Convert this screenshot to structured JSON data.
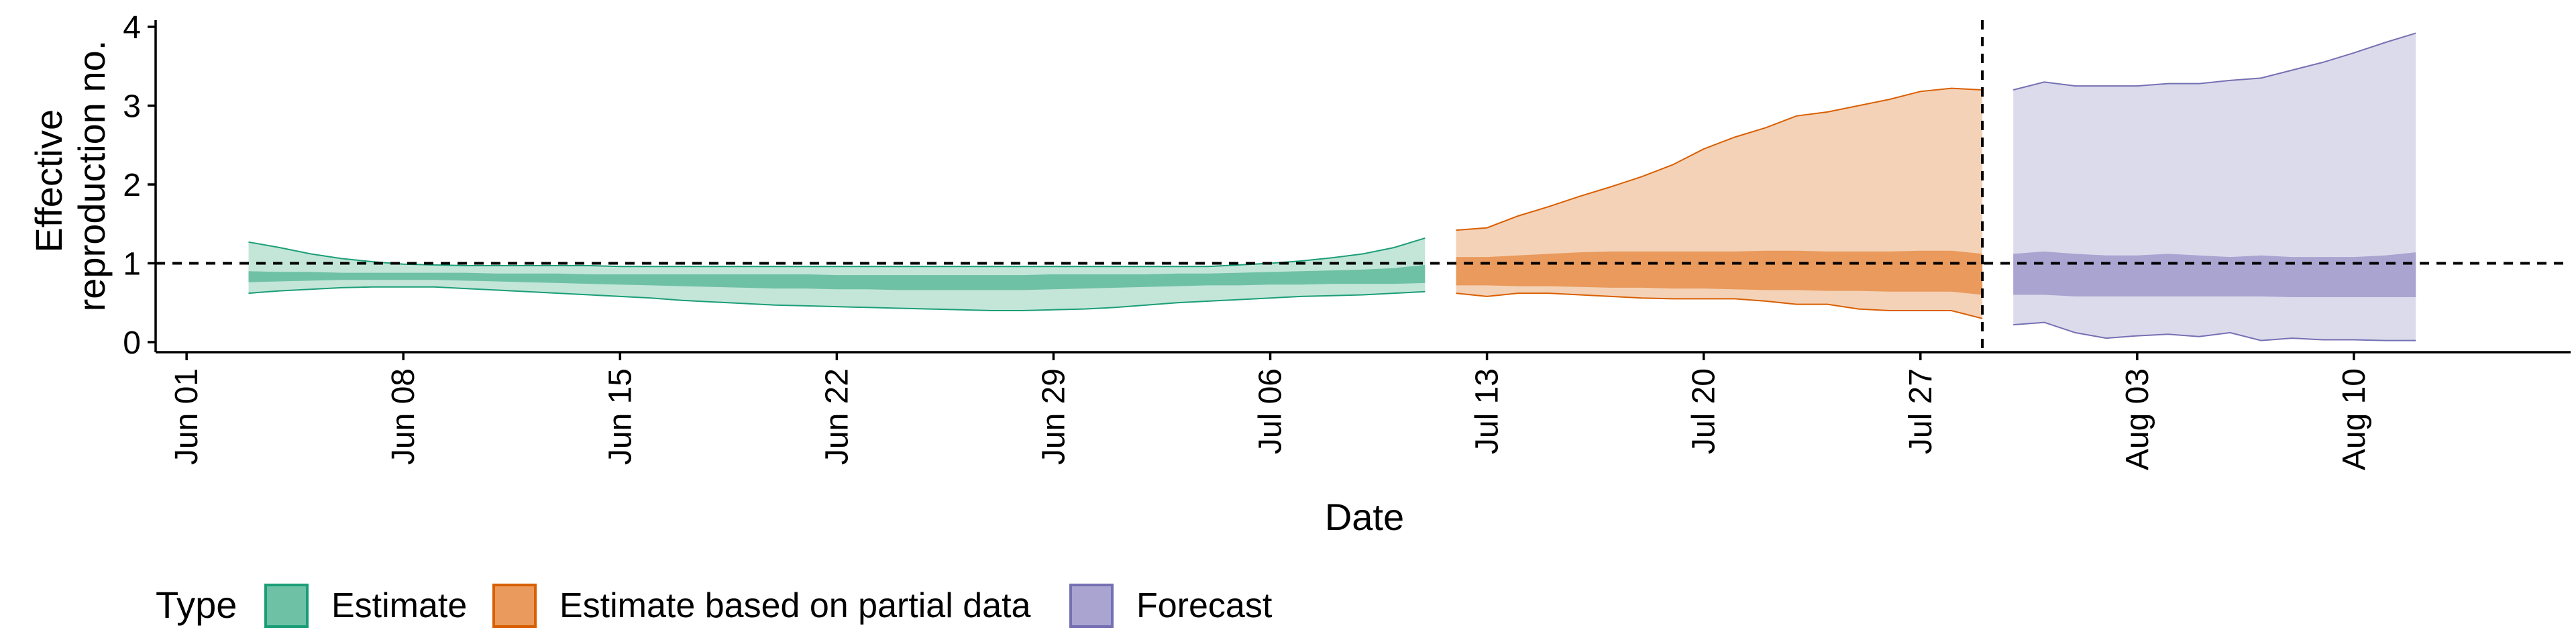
{
  "chart_data": {
    "type": "area",
    "title": "",
    "xlabel": "Date",
    "ylabel_lines": [
      "Effective",
      "reproduction no."
    ],
    "ylim": [
      0,
      4
    ],
    "yticks": [
      0,
      1,
      2,
      3,
      4
    ],
    "xlim": [
      "2021-05-31",
      "2021-08-17"
    ],
    "xticks": [
      {
        "date": "2021-06-01",
        "label": "Jun 01"
      },
      {
        "date": "2021-06-08",
        "label": "Jun 08"
      },
      {
        "date": "2021-06-15",
        "label": "Jun 15"
      },
      {
        "date": "2021-06-22",
        "label": "Jun 22"
      },
      {
        "date": "2021-06-29",
        "label": "Jun 29"
      },
      {
        "date": "2021-07-06",
        "label": "Jul 06"
      },
      {
        "date": "2021-07-13",
        "label": "Jul 13"
      },
      {
        "date": "2021-07-20",
        "label": "Jul 20"
      },
      {
        "date": "2021-07-27",
        "label": "Jul 27"
      },
      {
        "date": "2021-08-03",
        "label": "Aug 03"
      },
      {
        "date": "2021-08-10",
        "label": "Aug 10"
      }
    ],
    "reference_line_y": 1,
    "vertical_reference_date": "2021-07-29",
    "grid": false,
    "legend": {
      "title": "Type",
      "position": "bottom-left",
      "entries": [
        {
          "label": "Estimate",
          "fill": "#6fc1a6",
          "stroke": "#1b9e77"
        },
        {
          "label": "Estimate based on partial data",
          "fill": "#e99a5c",
          "stroke": "#d95f02"
        },
        {
          "label": "Forecast",
          "fill": "#a9a4d0",
          "stroke": "#7570b3"
        }
      ]
    },
    "series": [
      {
        "name": "Estimate",
        "color": "#1b9e77",
        "outer_fill": "#c3e6d9",
        "inner_fill": "#6fc1a6",
        "dates": [
          "2021-06-03",
          "2021-06-04",
          "2021-06-05",
          "2021-06-06",
          "2021-06-07",
          "2021-06-08",
          "2021-06-09",
          "2021-06-10",
          "2021-06-11",
          "2021-06-12",
          "2021-06-13",
          "2021-06-14",
          "2021-06-15",
          "2021-06-16",
          "2021-06-17",
          "2021-06-18",
          "2021-06-19",
          "2021-06-20",
          "2021-06-21",
          "2021-06-22",
          "2021-06-23",
          "2021-06-24",
          "2021-06-25",
          "2021-06-26",
          "2021-06-27",
          "2021-06-28",
          "2021-06-29",
          "2021-06-30",
          "2021-07-01",
          "2021-07-02",
          "2021-07-03",
          "2021-07-04",
          "2021-07-05",
          "2021-07-06",
          "2021-07-07",
          "2021-07-08",
          "2021-07-09",
          "2021-07-10",
          "2021-07-11"
        ],
        "outer_lower": [
          0.62,
          0.65,
          0.67,
          0.69,
          0.7,
          0.7,
          0.7,
          0.68,
          0.66,
          0.64,
          0.62,
          0.6,
          0.58,
          0.56,
          0.53,
          0.51,
          0.49,
          0.47,
          0.46,
          0.45,
          0.44,
          0.43,
          0.42,
          0.41,
          0.4,
          0.4,
          0.41,
          0.42,
          0.44,
          0.47,
          0.5,
          0.52,
          0.54,
          0.56,
          0.58,
          0.59,
          0.6,
          0.62,
          0.64
        ],
        "inner_lower": [
          0.76,
          0.77,
          0.78,
          0.79,
          0.79,
          0.79,
          0.79,
          0.78,
          0.77,
          0.76,
          0.75,
          0.74,
          0.73,
          0.72,
          0.71,
          0.7,
          0.69,
          0.68,
          0.68,
          0.67,
          0.67,
          0.66,
          0.66,
          0.66,
          0.66,
          0.66,
          0.67,
          0.68,
          0.69,
          0.7,
          0.71,
          0.72,
          0.72,
          0.73,
          0.73,
          0.74,
          0.74,
          0.74,
          0.75
        ],
        "inner_upper": [
          0.9,
          0.89,
          0.89,
          0.88,
          0.88,
          0.88,
          0.88,
          0.88,
          0.87,
          0.87,
          0.87,
          0.86,
          0.86,
          0.86,
          0.86,
          0.86,
          0.86,
          0.86,
          0.86,
          0.85,
          0.85,
          0.85,
          0.85,
          0.85,
          0.85,
          0.85,
          0.86,
          0.86,
          0.86,
          0.86,
          0.87,
          0.87,
          0.88,
          0.89,
          0.9,
          0.91,
          0.92,
          0.94,
          0.98
        ],
        "outer_upper": [
          1.27,
          1.2,
          1.12,
          1.06,
          1.02,
          0.99,
          0.98,
          0.97,
          0.97,
          0.97,
          0.97,
          0.97,
          0.96,
          0.96,
          0.96,
          0.96,
          0.96,
          0.96,
          0.96,
          0.96,
          0.96,
          0.96,
          0.96,
          0.96,
          0.96,
          0.96,
          0.96,
          0.96,
          0.96,
          0.96,
          0.96,
          0.96,
          0.98,
          1.0,
          1.03,
          1.07,
          1.12,
          1.2,
          1.32
        ]
      },
      {
        "name": "Estimate based on partial data",
        "color": "#d95f02",
        "outer_fill": "#f4d2b7",
        "inner_fill": "#e99a5c",
        "dates": [
          "2021-07-12",
          "2021-07-13",
          "2021-07-14",
          "2021-07-15",
          "2021-07-16",
          "2021-07-17",
          "2021-07-18",
          "2021-07-19",
          "2021-07-20",
          "2021-07-21",
          "2021-07-22",
          "2021-07-23",
          "2021-07-24",
          "2021-07-25",
          "2021-07-26",
          "2021-07-27",
          "2021-07-28",
          "2021-07-29"
        ],
        "outer_lower": [
          0.62,
          0.58,
          0.62,
          0.62,
          0.6,
          0.58,
          0.56,
          0.55,
          0.55,
          0.55,
          0.52,
          0.48,
          0.48,
          0.42,
          0.4,
          0.4,
          0.4,
          0.3
        ],
        "inner_lower": [
          0.72,
          0.72,
          0.71,
          0.71,
          0.7,
          0.69,
          0.69,
          0.68,
          0.68,
          0.67,
          0.66,
          0.66,
          0.65,
          0.65,
          0.64,
          0.64,
          0.64,
          0.6
        ],
        "inner_upper": [
          1.08,
          1.08,
          1.1,
          1.12,
          1.14,
          1.15,
          1.15,
          1.15,
          1.15,
          1.15,
          1.16,
          1.16,
          1.15,
          1.15,
          1.15,
          1.16,
          1.16,
          1.12
        ],
        "outer_upper": [
          1.42,
          1.45,
          1.6,
          1.72,
          1.85,
          1.97,
          2.1,
          2.25,
          2.45,
          2.6,
          2.72,
          2.87,
          2.92,
          3.0,
          3.08,
          3.18,
          3.22,
          3.2
        ]
      },
      {
        "name": "Forecast",
        "color": "#7570b3",
        "outer_fill": "#dcdbec",
        "inner_fill": "#a9a4d0",
        "dates": [
          "2021-07-30",
          "2021-07-31",
          "2021-08-01",
          "2021-08-02",
          "2021-08-03",
          "2021-08-04",
          "2021-08-05",
          "2021-08-06",
          "2021-08-07",
          "2021-08-08",
          "2021-08-09",
          "2021-08-10",
          "2021-08-11",
          "2021-08-12"
        ],
        "outer_lower": [
          0.22,
          0.25,
          0.12,
          0.05,
          0.08,
          0.1,
          0.07,
          0.12,
          0.02,
          0.05,
          0.03,
          0.03,
          0.02,
          0.02
        ],
        "inner_lower": [
          0.6,
          0.6,
          0.58,
          0.58,
          0.58,
          0.58,
          0.58,
          0.58,
          0.58,
          0.57,
          0.57,
          0.57,
          0.57,
          0.57
        ],
        "inner_upper": [
          1.12,
          1.15,
          1.12,
          1.1,
          1.1,
          1.12,
          1.1,
          1.08,
          1.1,
          1.08,
          1.08,
          1.08,
          1.1,
          1.14
        ],
        "outer_upper": [
          3.2,
          3.3,
          3.25,
          3.25,
          3.25,
          3.28,
          3.28,
          3.32,
          3.35,
          3.45,
          3.55,
          3.67,
          3.8,
          3.92
        ]
      }
    ]
  }
}
